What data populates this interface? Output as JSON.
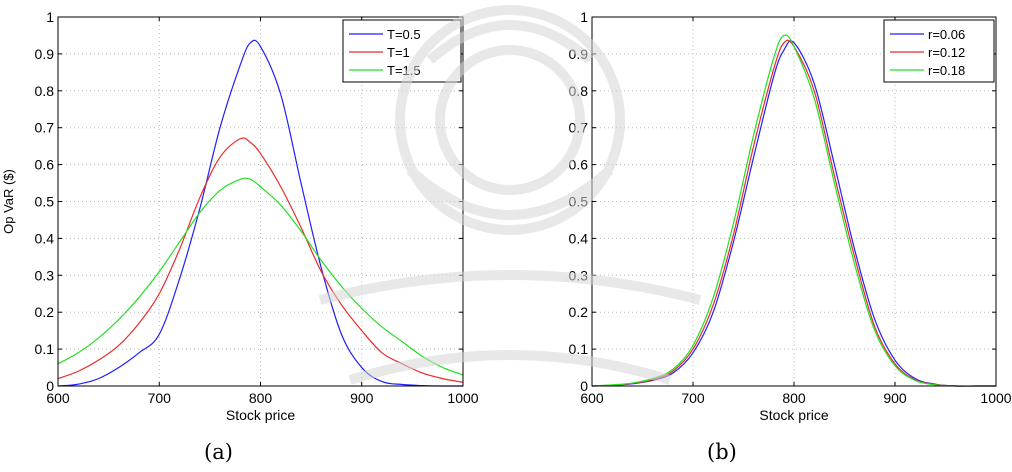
{
  "captions": [
    "(a)",
    "(b)"
  ],
  "colors": {
    "blue": "#1f1fff",
    "red": "#ee2a2a",
    "green": "#22e022",
    "grid": "#b8b8b8",
    "axis": "#000000"
  },
  "chart_data": [
    {
      "type": "line",
      "panel": "(a)",
      "xlabel": "Stock price",
      "ylabel": "Op VaR ($)",
      "xlim": [
        600,
        1000
      ],
      "ylim": [
        0,
        1
      ],
      "xticks": [
        600,
        700,
        800,
        900,
        1000
      ],
      "yticks": [
        0,
        0.1,
        0.2,
        0.3,
        0.4,
        0.5,
        0.6,
        0.7,
        0.8,
        0.9,
        1
      ],
      "grid": true,
      "legend": "top-right",
      "x": [
        600,
        620,
        640,
        660,
        680,
        700,
        720,
        740,
        760,
        780,
        790,
        800,
        820,
        840,
        860,
        880,
        900,
        920,
        940,
        960,
        980,
        1000
      ],
      "series": [
        {
          "name": "T=0.5",
          "color": "blue",
          "values": [
            0.0,
            0.005,
            0.02,
            0.05,
            0.09,
            0.14,
            0.29,
            0.48,
            0.7,
            0.87,
            0.93,
            0.92,
            0.79,
            0.55,
            0.32,
            0.14,
            0.05,
            0.012,
            0.004,
            0.001,
            0.0,
            0.0
          ]
        },
        {
          "name": "T=1",
          "color": "red",
          "values": [
            0.02,
            0.04,
            0.07,
            0.11,
            0.17,
            0.25,
            0.37,
            0.51,
            0.62,
            0.67,
            0.66,
            0.63,
            0.54,
            0.43,
            0.31,
            0.22,
            0.15,
            0.09,
            0.06,
            0.035,
            0.02,
            0.01
          ]
        },
        {
          "name": "T=1.5",
          "color": "green",
          "values": [
            0.06,
            0.09,
            0.13,
            0.18,
            0.24,
            0.31,
            0.39,
            0.47,
            0.53,
            0.56,
            0.56,
            0.54,
            0.49,
            0.42,
            0.34,
            0.27,
            0.21,
            0.16,
            0.12,
            0.08,
            0.05,
            0.03
          ]
        }
      ]
    },
    {
      "type": "line",
      "panel": "(b)",
      "xlabel": "Stock price",
      "ylabel": "",
      "xlim": [
        600,
        1000
      ],
      "ylim": [
        0,
        1
      ],
      "xticks": [
        600,
        700,
        800,
        900,
        1000
      ],
      "yticks": [
        0,
        0.1,
        0.2,
        0.3,
        0.4,
        0.5,
        0.6,
        0.7,
        0.8,
        0.9,
        1
      ],
      "grid": true,
      "legend": "top-right",
      "x": [
        600,
        620,
        640,
        660,
        680,
        700,
        720,
        740,
        760,
        780,
        790,
        800,
        820,
        840,
        860,
        880,
        900,
        920,
        940,
        960,
        980,
        1000
      ],
      "series": [
        {
          "name": "r=0.06",
          "color": "blue",
          "values": [
            0.0,
            0.002,
            0.006,
            0.015,
            0.035,
            0.09,
            0.2,
            0.39,
            0.62,
            0.84,
            0.91,
            0.93,
            0.82,
            0.6,
            0.37,
            0.18,
            0.07,
            0.02,
            0.005,
            0.0,
            0.0,
            0.0
          ]
        },
        {
          "name": "r=0.12",
          "color": "red",
          "values": [
            0.0,
            0.002,
            0.007,
            0.017,
            0.04,
            0.1,
            0.22,
            0.41,
            0.65,
            0.86,
            0.93,
            0.92,
            0.8,
            0.57,
            0.35,
            0.16,
            0.06,
            0.017,
            0.004,
            0.0,
            0.0,
            0.0
          ]
        },
        {
          "name": "r=0.18",
          "color": "green",
          "values": [
            0.0,
            0.003,
            0.008,
            0.02,
            0.045,
            0.11,
            0.24,
            0.44,
            0.68,
            0.89,
            0.95,
            0.92,
            0.78,
            0.55,
            0.33,
            0.15,
            0.055,
            0.015,
            0.003,
            0.0,
            0.0,
            0.0
          ]
        }
      ]
    }
  ]
}
